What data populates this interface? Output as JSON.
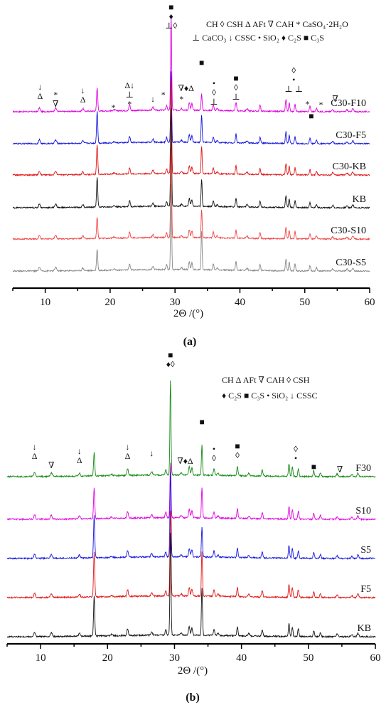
{
  "charts": [
    {
      "panel_label": "(a)",
      "xlabel": "2Θ /(°)",
      "xlim": [
        5,
        60
      ],
      "x_ticks": [
        10,
        20,
        30,
        40,
        50,
        60
      ],
      "legend": [
        {
          "symbol": "",
          "text": "CH"
        },
        {
          "symbol": "◊",
          "text": "CSH"
        },
        {
          "symbol": "Δ",
          "text": "AFt"
        },
        {
          "symbol": "∇",
          "text": "CAH"
        },
        {
          "symbol": "*",
          "text": "CaSO₄·2H₂O"
        },
        {
          "symbol": "⊥",
          "text": "CaCO₃"
        },
        {
          "symbol": "↓",
          "text": "CSSC"
        },
        {
          "symbol": "•",
          "text": "SiO₂"
        },
        {
          "symbol": "♦",
          "text": "C₂S"
        },
        {
          "symbol": "■",
          "text": "C₃S"
        }
      ],
      "series": [
        {
          "name": "C30-F10",
          "color": "#e100e1"
        },
        {
          "name": "C30-F5",
          "color": "#1515e0"
        },
        {
          "name": "C30-KB",
          "color": "#e01515"
        },
        {
          "name": "KB",
          "color": "#111111"
        },
        {
          "name": "C30-S10",
          "color": "#f04545"
        },
        {
          "name": "C30-S5",
          "color": "#888888"
        }
      ],
      "annotations": [
        {
          "x": 9.2,
          "stack": [
            "↓",
            "Δ"
          ]
        },
        {
          "x": 11.6,
          "stack": [
            "*",
            "∇"
          ]
        },
        {
          "x": 15.8,
          "stack": [
            "↓",
            "Δ"
          ]
        },
        {
          "x": 20.5,
          "stack": [
            "*"
          ]
        },
        {
          "x": 23.0,
          "stack": [
            "Δ↓",
            "⊥",
            "*"
          ]
        },
        {
          "x": 26.6,
          "stack": [
            "↓"
          ]
        },
        {
          "x": 28.2,
          "stack": [
            "*"
          ]
        },
        {
          "x": 29.4,
          "stack": [
            "■",
            "♦",
            "⊥◊"
          ]
        },
        {
          "x": 31.0,
          "stack": [
            "*"
          ]
        },
        {
          "x": 31.7,
          "stack": [
            "∇♦Δ"
          ]
        },
        {
          "x": 34.1,
          "stack": [
            "■"
          ]
        },
        {
          "x": 36.0,
          "stack": [
            "•",
            "◊",
            "⊥"
          ]
        },
        {
          "x": 39.4,
          "stack": [
            "■",
            "◊",
            "⊥"
          ]
        },
        {
          "x": 48.3,
          "stack": [
            "◊",
            "•",
            "⊥ ⊥"
          ]
        },
        {
          "x": 50.4,
          "stack": [
            "*"
          ]
        },
        {
          "x": 51.0,
          "stack": [
            "■"
          ]
        },
        {
          "x": 52.5,
          "stack": [
            "*"
          ]
        },
        {
          "x": 54.7,
          "stack": [
            "∇"
          ]
        }
      ]
    },
    {
      "panel_label": "(b)",
      "xlabel": "2Θ /(°)",
      "xlim": [
        5,
        60
      ],
      "x_ticks": [
        10,
        20,
        30,
        40,
        50,
        60
      ],
      "legend": [
        {
          "symbol": "",
          "text": "CH"
        },
        {
          "symbol": "Δ",
          "text": "AFt"
        },
        {
          "symbol": "∇",
          "text": "CAH"
        },
        {
          "symbol": "◊",
          "text": "CSH"
        },
        {
          "symbol": "♦",
          "text": "C₂S"
        },
        {
          "symbol": "■",
          "text": "C₃S"
        },
        {
          "symbol": "•",
          "text": "SiO₂"
        },
        {
          "symbol": "↓",
          "text": "CSSC"
        }
      ],
      "series": [
        {
          "name": "F30",
          "color": "#128a12"
        },
        {
          "name": "S10",
          "color": "#e100e1"
        },
        {
          "name": "S5",
          "color": "#1515e0"
        },
        {
          "name": "F5",
          "color": "#e01515"
        },
        {
          "name": "KB",
          "color": "#111111"
        }
      ],
      "annotations": [
        {
          "x": 9.1,
          "stack": [
            "↓",
            "Δ"
          ]
        },
        {
          "x": 11.6,
          "stack": [
            "∇"
          ]
        },
        {
          "x": 15.8,
          "stack": [
            "↓",
            "Δ"
          ]
        },
        {
          "x": 23.0,
          "stack": [
            "↓",
            "Δ"
          ]
        },
        {
          "x": 26.6,
          "stack": [
            "↓"
          ]
        },
        {
          "x": 29.4,
          "stack": [
            "■",
            "♦◊"
          ]
        },
        {
          "x": 31.6,
          "stack": [
            "∇♦Δ"
          ]
        },
        {
          "x": 34.1,
          "stack": [
            "■"
          ]
        },
        {
          "x": 35.9,
          "stack": [
            "•",
            "◊"
          ]
        },
        {
          "x": 39.4,
          "stack": [
            "■",
            "◊"
          ]
        },
        {
          "x": 48.1,
          "stack": [
            "◊",
            "•"
          ]
        },
        {
          "x": 50.8,
          "stack": [
            "■"
          ]
        },
        {
          "x": 54.7,
          "stack": [
            "∇"
          ]
        }
      ]
    }
  ],
  "chart_data": [
    {
      "type": "line",
      "xlabel": "2Θ /(°)",
      "ylabel": "",
      "xlim": [
        5,
        60
      ],
      "series": [
        {
          "name": "C30-F10"
        },
        {
          "name": "C30-F5"
        },
        {
          "name": "C30-KB"
        },
        {
          "name": "KB"
        },
        {
          "name": "C30-S10"
        },
        {
          "name": "C30-S5"
        }
      ],
      "peaks_2theta": {
        "x": [
          9.1,
          11.6,
          15.8,
          18.0,
          20.6,
          23.0,
          26.6,
          28.7,
          29.4,
          31.0,
          32.2,
          32.6,
          34.1,
          35.9,
          36.5,
          39.4,
          41.1,
          43.1,
          47.1,
          47.6,
          48.5,
          50.8,
          51.8,
          54.3,
          56.5,
          57.4
        ],
        "strong": [
          18.0,
          29.4,
          34.1,
          47.1
        ]
      },
      "grid": false,
      "legend_position": "top-right"
    },
    {
      "type": "line",
      "xlabel": "2Θ /(°)",
      "ylabel": "",
      "xlim": [
        5,
        60
      ],
      "series": [
        {
          "name": "F30"
        },
        {
          "name": "S10"
        },
        {
          "name": "S5"
        },
        {
          "name": "F5"
        },
        {
          "name": "KB"
        }
      ],
      "peaks_2theta": {
        "x": [
          9.1,
          11.6,
          15.8,
          18.0,
          20.6,
          23.0,
          26.6,
          28.7,
          29.4,
          31.0,
          32.2,
          32.6,
          34.1,
          35.9,
          36.5,
          39.4,
          41.1,
          43.1,
          47.1,
          47.6,
          48.5,
          50.8,
          51.8,
          54.3,
          56.5,
          57.4
        ],
        "strong": [
          18.0,
          29.4,
          34.1,
          47.1
        ]
      },
      "grid": false,
      "legend_position": "top-right"
    }
  ]
}
